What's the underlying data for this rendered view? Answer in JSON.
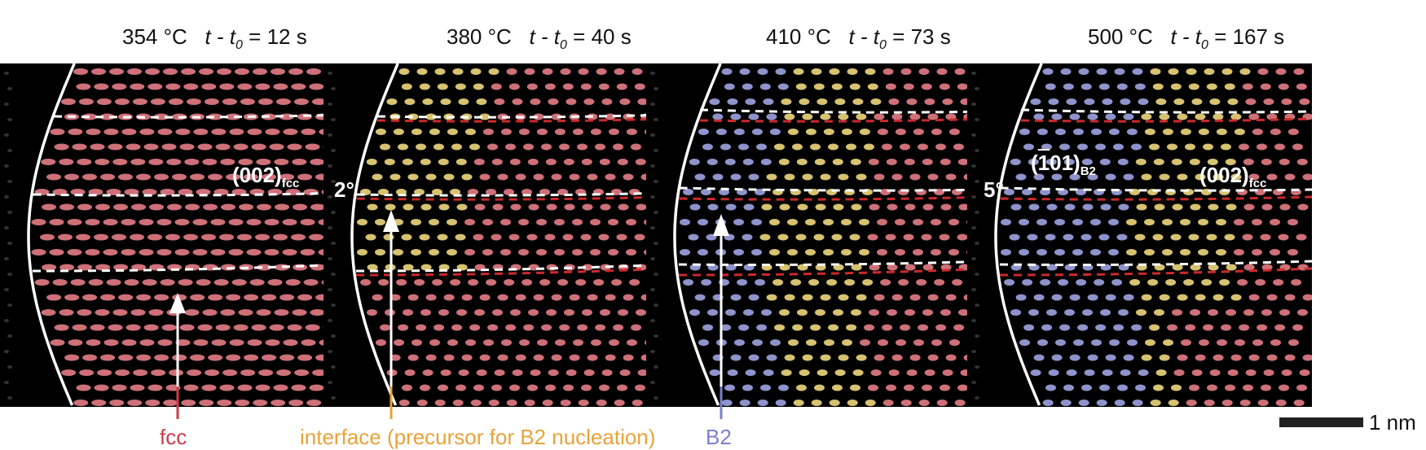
{
  "panels": [
    {
      "temp": "354 °C",
      "time": "12 s",
      "dominant": "fcc"
    },
    {
      "temp": "380 °C",
      "time": "40 s",
      "dominant": "fcc-interface",
      "angle": "2°"
    },
    {
      "temp": "410 °C",
      "time": "73 s",
      "dominant": "mixed"
    },
    {
      "temp": "500 °C",
      "time": "167 s",
      "dominant": "b2",
      "angle": "5°"
    }
  ],
  "time_prefix": "t - t",
  "time_sub": "0",
  "labels": {
    "fcc_plane": "(002)",
    "fcc_sub": "fcc",
    "b2_plane": "(101)",
    "b2_sub": "B2",
    "b2_overbar": "1"
  },
  "annotations": {
    "fcc": "fcc",
    "interface": "interface (precursor for B2 nucleation)",
    "b2": "B2"
  },
  "scale_bar": "1 nm",
  "colors": {
    "fcc": "#e07a82",
    "b2": "#9aa0dc",
    "interface": "#e8a33a",
    "gold": "#e8d27a",
    "red_line": "#cc2a2a"
  }
}
